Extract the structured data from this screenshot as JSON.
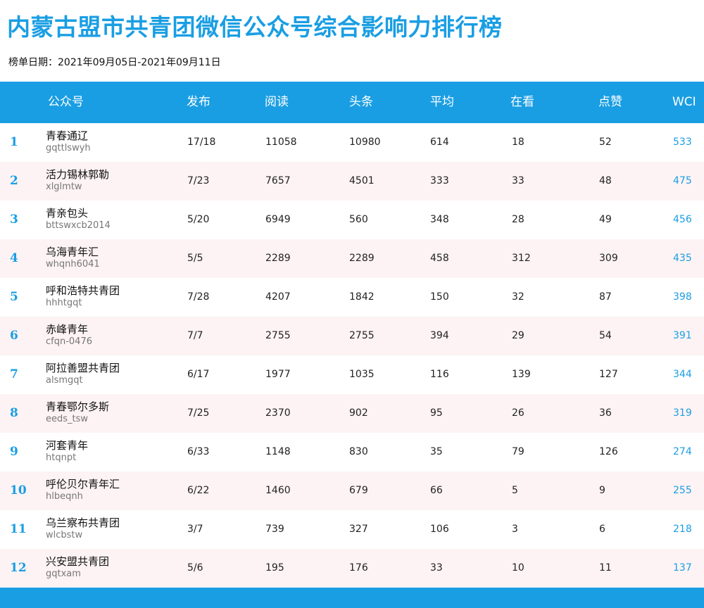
{
  "page": {
    "title": "内蒙古盟市共青团微信公众号综合影响力排行榜",
    "date_range": "榜单日期：2021年09月05日-2021年09月11日"
  },
  "colors": {
    "accent": "#1a9ee3",
    "row_alt": "#fdf3f4"
  },
  "table": {
    "headers": [
      "公众号",
      "发布",
      "阅读",
      "头条",
      "平均",
      "在看",
      "点赞",
      "WCI"
    ],
    "rows": [
      {
        "rank": "1",
        "name": "青春通辽",
        "account": "gqttlswyh",
        "publish": "17/18",
        "read": "11058",
        "headline": "10980",
        "average": "614",
        "watching": "18",
        "likes": "52",
        "wci": "533"
      },
      {
        "rank": "2",
        "name": "活力锡林郭勒",
        "account": "xlglmtw",
        "publish": "7/23",
        "read": "7657",
        "headline": "4501",
        "average": "333",
        "watching": "33",
        "likes": "48",
        "wci": "475"
      },
      {
        "rank": "3",
        "name": "青亲包头",
        "account": "bttswxcb2014",
        "publish": "5/20",
        "read": "6949",
        "headline": "560",
        "average": "348",
        "watching": "28",
        "likes": "49",
        "wci": "456"
      },
      {
        "rank": "4",
        "name": "乌海青年汇",
        "account": "whqnh6041",
        "publish": "5/5",
        "read": "2289",
        "headline": "2289",
        "average": "458",
        "watching": "312",
        "likes": "309",
        "wci": "435"
      },
      {
        "rank": "5",
        "name": "呼和浩特共青团",
        "account": "hhhtgqt",
        "publish": "7/28",
        "read": "4207",
        "headline": "1842",
        "average": "150",
        "watching": "32",
        "likes": "87",
        "wci": "398"
      },
      {
        "rank": "6",
        "name": "赤峰青年",
        "account": "cfqn-0476",
        "publish": "7/7",
        "read": "2755",
        "headline": "2755",
        "average": "394",
        "watching": "29",
        "likes": "54",
        "wci": "391"
      },
      {
        "rank": "7",
        "name": "阿拉善盟共青团",
        "account": "alsmgqt",
        "publish": "6/17",
        "read": "1977",
        "headline": "1035",
        "average": "116",
        "watching": "139",
        "likes": "127",
        "wci": "344"
      },
      {
        "rank": "8",
        "name": "青春鄂尔多斯",
        "account": "eeds_tsw",
        "publish": "7/25",
        "read": "2370",
        "headline": "902",
        "average": "95",
        "watching": "26",
        "likes": "36",
        "wci": "319"
      },
      {
        "rank": "9",
        "name": "河套青年",
        "account": "htqnpt",
        "publish": "6/33",
        "read": "1148",
        "headline": "830",
        "average": "35",
        "watching": "79",
        "likes": "126",
        "wci": "274"
      },
      {
        "rank": "10",
        "name": "呼伦贝尔青年汇",
        "account": "hlbeqnh",
        "publish": "6/22",
        "read": "1460",
        "headline": "679",
        "average": "66",
        "watching": "5",
        "likes": "9",
        "wci": "255"
      },
      {
        "rank": "11",
        "name": "乌兰察布共青团",
        "account": "wlcbstw",
        "publish": "3/7",
        "read": "739",
        "headline": "327",
        "average": "106",
        "watching": "3",
        "likes": "6",
        "wci": "218"
      },
      {
        "rank": "12",
        "name": "兴安盟共青团",
        "account": "gqtxam",
        "publish": "5/6",
        "read": "195",
        "headline": "176",
        "average": "33",
        "watching": "10",
        "likes": "11",
        "wci": "137"
      }
    ]
  }
}
